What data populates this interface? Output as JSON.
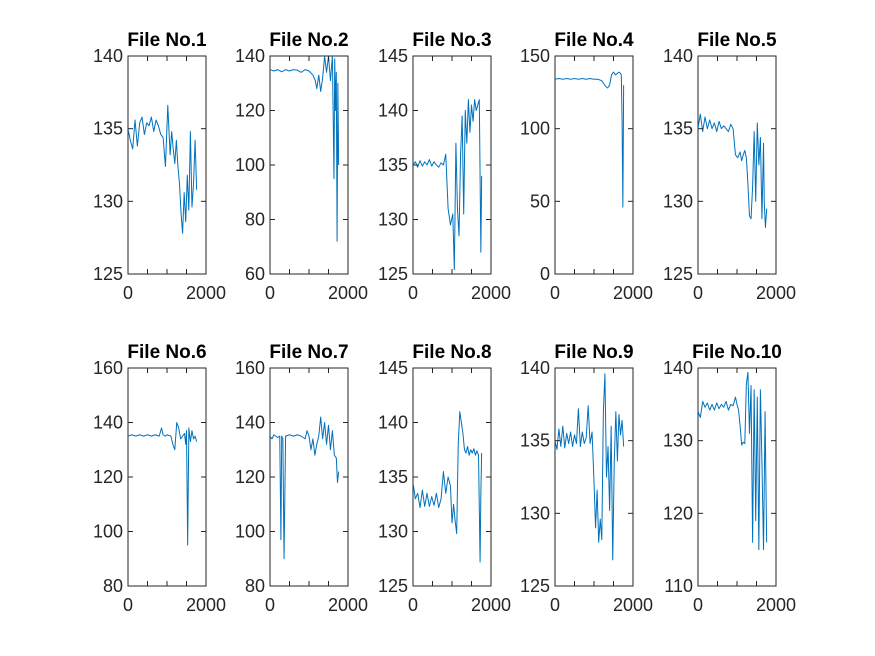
{
  "chart_data": [
    {
      "type": "line",
      "title": "File No.1",
      "xlim": [
        0,
        2000
      ],
      "xticks": [
        "0",
        "2000"
      ],
      "ylim": [
        125,
        140
      ],
      "yticks": [
        "125",
        "130",
        "135",
        "140"
      ],
      "color": "#0072bd",
      "series": [
        {
          "x": [
            0,
            60,
            120,
            180,
            240,
            300,
            360,
            420,
            480,
            540,
            600,
            660,
            720,
            780,
            840,
            900,
            960,
            1020,
            1080,
            1120,
            1160,
            1200,
            1240,
            1280,
            1320,
            1360,
            1400,
            1440,
            1480,
            1520,
            1560,
            1600,
            1640,
            1680,
            1720,
            1760
          ],
          "y": [
            135,
            134.2,
            133.6,
            135.6,
            133.8,
            135.4,
            135.8,
            134.6,
            135.4,
            135.2,
            135.8,
            134.8,
            135.6,
            135.2,
            134.6,
            134.4,
            132.4,
            136.6,
            133.2,
            134.8,
            133.6,
            132.6,
            134.2,
            132.4,
            131.2,
            129.2,
            127.8,
            130.6,
            128.6,
            131.8,
            129.4,
            134.8,
            129.6,
            131.2,
            134.2,
            130.8
          ]
        }
      ]
    },
    {
      "type": "line",
      "title": "File No.2",
      "xlim": [
        0,
        2000
      ],
      "xticks": [
        "0",
        "2000"
      ],
      "ylim": [
        60,
        140
      ],
      "yticks": [
        "60",
        "80",
        "100",
        "120",
        "140"
      ],
      "color": "#0072bd",
      "series": [
        {
          "x": [
            0,
            100,
            200,
            300,
            400,
            500,
            600,
            700,
            800,
            900,
            1000,
            1100,
            1160,
            1200,
            1250,
            1300,
            1350,
            1400,
            1450,
            1500,
            1550,
            1600,
            1640,
            1660,
            1680,
            1700,
            1720,
            1740,
            1760
          ],
          "y": [
            135,
            134.5,
            135,
            134.2,
            135,
            134.5,
            135,
            134.8,
            134,
            135,
            134.5,
            133,
            131,
            128,
            133,
            127,
            132,
            140,
            134,
            140,
            131,
            140,
            95,
            139,
            120,
            134,
            72,
            130,
            100
          ]
        }
      ]
    },
    {
      "type": "line",
      "title": "File No.3",
      "xlim": [
        0,
        2000
      ],
      "xticks": [
        "0",
        "2000"
      ],
      "ylim": [
        125,
        145
      ],
      "yticks": [
        "125",
        "130",
        "135",
        "140",
        "145"
      ],
      "color": "#0072bd",
      "series": [
        {
          "x": [
            0,
            60,
            120,
            180,
            240,
            300,
            360,
            420,
            480,
            540,
            600,
            660,
            720,
            780,
            840,
            900,
            960,
            1020,
            1060,
            1100,
            1140,
            1180,
            1220,
            1260,
            1300,
            1340,
            1380,
            1420,
            1460,
            1500,
            1540,
            1580,
            1620,
            1660,
            1700,
            1740,
            1760
          ],
          "y": [
            135,
            135.3,
            134.8,
            135.4,
            134.9,
            135.3,
            135,
            135.5,
            134.9,
            135.3,
            135,
            134.8,
            135.2,
            135,
            136,
            131,
            129.5,
            130.5,
            125.4,
            137,
            131,
            128.5,
            136,
            139.5,
            130.5,
            140,
            137,
            141,
            138,
            140.5,
            139,
            141,
            140,
            140.5,
            141,
            127,
            134
          ]
        }
      ]
    },
    {
      "type": "line",
      "title": "File No.4",
      "xlim": [
        0,
        2000
      ],
      "xticks": [
        "0",
        "2000"
      ],
      "ylim": [
        0,
        150
      ],
      "yticks": [
        "0",
        "50",
        "100",
        "150"
      ],
      "color": "#0072bd",
      "series": [
        {
          "x": [
            0,
            100,
            200,
            300,
            400,
            500,
            600,
            700,
            800,
            900,
            1000,
            1100,
            1200,
            1250,
            1300,
            1350,
            1400,
            1450,
            1500,
            1550,
            1600,
            1650,
            1700,
            1720,
            1740,
            1760
          ],
          "y": [
            134,
            134.5,
            134,
            134.5,
            134,
            134.5,
            134,
            134.5,
            134,
            134.5,
            134,
            134,
            133,
            131,
            129,
            128,
            130,
            137,
            139,
            137,
            138,
            139,
            137,
            105,
            46,
            130
          ]
        }
      ]
    },
    {
      "type": "line",
      "title": "File No.5",
      "xlim": [
        0,
        2000
      ],
      "xticks": [
        "0",
        "2000"
      ],
      "ylim": [
        125,
        140
      ],
      "yticks": [
        "125",
        "130",
        "135",
        "140"
      ],
      "color": "#0072bd",
      "series": [
        {
          "x": [
            0,
            60,
            120,
            180,
            240,
            300,
            360,
            420,
            480,
            540,
            600,
            660,
            720,
            780,
            840,
            900,
            960,
            1020,
            1080,
            1120,
            1160,
            1200,
            1240,
            1280,
            1320,
            1360,
            1400,
            1440,
            1480,
            1520,
            1560,
            1600,
            1640,
            1680,
            1700,
            1730,
            1760
          ],
          "y": [
            135,
            136,
            134.8,
            135.8,
            135,
            135.6,
            135,
            135.4,
            134.8,
            135.5,
            135,
            135.2,
            135,
            134.8,
            135.3,
            135,
            133.2,
            133,
            133.4,
            132.8,
            133.2,
            133.5,
            133,
            131.2,
            129,
            128.8,
            131,
            134.8,
            130,
            135.4,
            132.5,
            134.4,
            128.8,
            134,
            129.8,
            128.2,
            129.5
          ]
        }
      ]
    },
    {
      "type": "line",
      "title": "File No.6",
      "xlim": [
        0,
        2000
      ],
      "xticks": [
        "0",
        "2000"
      ],
      "ylim": [
        80,
        160
      ],
      "yticks": [
        "80",
        "100",
        "120",
        "140",
        "160"
      ],
      "color": "#0072bd",
      "series": [
        {
          "x": [
            0,
            100,
            200,
            300,
            400,
            500,
            600,
            700,
            800,
            860,
            900,
            960,
            1000,
            1100,
            1150,
            1200,
            1250,
            1300,
            1350,
            1400,
            1450,
            1480,
            1500,
            1530,
            1560,
            1600,
            1640,
            1680,
            1720,
            1760
          ],
          "y": [
            135,
            135.5,
            135,
            135.5,
            135,
            135.5,
            135,
            135.5,
            135,
            138,
            135.5,
            135,
            135.5,
            135,
            132,
            130,
            140,
            138,
            134,
            135,
            136,
            132,
            137,
            95,
            138,
            133,
            137,
            134,
            135,
            133
          ]
        }
      ]
    },
    {
      "type": "line",
      "title": "File No.7",
      "xlim": [
        0,
        2000
      ],
      "xticks": [
        "0",
        "2000"
      ],
      "ylim": [
        80,
        160
      ],
      "yticks": [
        "80",
        "100",
        "120",
        "140",
        "160"
      ],
      "color": "#0072bd",
      "series": [
        {
          "x": [
            0,
            50,
            100,
            150,
            200,
            250,
            280,
            300,
            330,
            360,
            400,
            500,
            600,
            700,
            800,
            900,
            950,
            1000,
            1050,
            1100,
            1150,
            1200,
            1250,
            1300,
            1350,
            1400,
            1450,
            1500,
            1550,
            1600,
            1650,
            1700,
            1730,
            1760
          ],
          "y": [
            135,
            134,
            135.5,
            135,
            134.5,
            135,
            97,
            135,
            134,
            90,
            135,
            135.5,
            135,
            135.5,
            135,
            134,
            137,
            135,
            130,
            134,
            128,
            132,
            135,
            142,
            134,
            140,
            132,
            139,
            130,
            137,
            128,
            127,
            118,
            122
          ]
        }
      ]
    },
    {
      "type": "line",
      "title": "File No.8",
      "xlim": [
        0,
        2000
      ],
      "xticks": [
        "0",
        "2000"
      ],
      "ylim": [
        125,
        145
      ],
      "yticks": [
        "125",
        "130",
        "135",
        "140",
        "145"
      ],
      "color": "#0072bd",
      "series": [
        {
          "x": [
            0,
            60,
            120,
            180,
            240,
            300,
            360,
            420,
            480,
            540,
            600,
            660,
            720,
            780,
            840,
            900,
            960,
            1000,
            1040,
            1080,
            1120,
            1160,
            1200,
            1240,
            1280,
            1320,
            1360,
            1400,
            1440,
            1480,
            1520,
            1560,
            1600,
            1640,
            1680,
            1720,
            1740,
            1760
          ],
          "y": [
            134.5,
            133,
            133.5,
            132.2,
            133.8,
            132.3,
            133.5,
            132.3,
            133.2,
            132.4,
            133.5,
            132.2,
            133,
            135.5,
            133.5,
            135,
            134.2,
            130.8,
            132.5,
            131,
            129.8,
            138,
            141,
            140,
            139,
            137.5,
            137.2,
            137.8,
            137,
            137.5,
            137.2,
            137.6,
            137,
            137.4,
            137,
            127.2,
            133.5,
            137.2
          ]
        }
      ]
    },
    {
      "type": "line",
      "title": "File No.9",
      "xlim": [
        0,
        2000
      ],
      "xticks": [
        "0",
        "2000"
      ],
      "ylim": [
        125,
        140
      ],
      "yticks": [
        "125",
        "130",
        "135",
        "140"
      ],
      "color": "#0072bd",
      "series": [
        {
          "x": [
            0,
            50,
            100,
            150,
            200,
            250,
            300,
            350,
            400,
            450,
            500,
            550,
            600,
            650,
            700,
            750,
            800,
            850,
            900,
            950,
            1000,
            1040,
            1080,
            1120,
            1160,
            1200,
            1240,
            1280,
            1320,
            1360,
            1400,
            1440,
            1480,
            1520,
            1560,
            1600,
            1640,
            1680,
            1720,
            1760
          ],
          "y": [
            135,
            134.4,
            135.8,
            134.6,
            136,
            134.5,
            135.5,
            134.8,
            135.6,
            134.6,
            135.4,
            134.8,
            137.2,
            134.6,
            135.6,
            134.8,
            135.2,
            137.4,
            134.8,
            135.6,
            132.2,
            129,
            131.6,
            128,
            129.6,
            128.2,
            137,
            139.6,
            132.5,
            134.6,
            130.2,
            136,
            126.8,
            133.6,
            137,
            133.6,
            136.8,
            135.4,
            136.4,
            134.6
          ]
        }
      ]
    },
    {
      "type": "line",
      "title": "File No.10",
      "xlim": [
        0,
        2000
      ],
      "xticks": [
        "0",
        "2000"
      ],
      "ylim": [
        110,
        140
      ],
      "yticks": [
        "110",
        "120",
        "130",
        "140"
      ],
      "color": "#0072bd",
      "series": [
        {
          "x": [
            0,
            60,
            120,
            180,
            240,
            300,
            360,
            420,
            480,
            540,
            600,
            660,
            720,
            780,
            840,
            900,
            960,
            1000,
            1040,
            1080,
            1120,
            1160,
            1200,
            1240,
            1280,
            1320,
            1360,
            1400,
            1440,
            1480,
            1520,
            1560,
            1600,
            1640,
            1680,
            1720,
            1760
          ],
          "y": [
            134,
            133.2,
            135.4,
            134.6,
            135.2,
            134.2,
            135,
            134.2,
            135.2,
            134.4,
            135,
            134.6,
            135.4,
            134.2,
            135,
            134.8,
            136,
            135,
            134.2,
            132,
            129.4,
            129.8,
            129.6,
            137.8,
            139.4,
            131,
            137.6,
            116,
            137,
            119,
            136,
            115,
            137,
            127,
            115,
            134,
            116
          ]
        }
      ]
    }
  ]
}
